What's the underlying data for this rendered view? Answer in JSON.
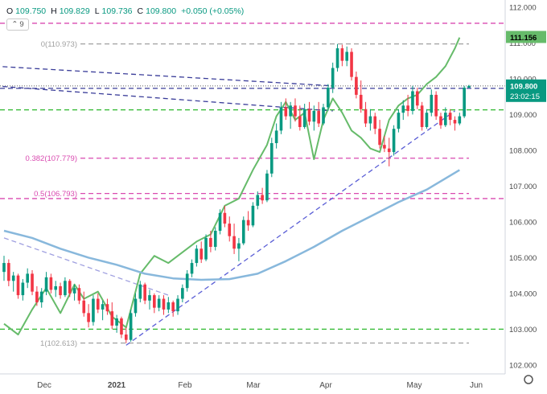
{
  "legend": {
    "open_label": "O",
    "open": "109.750",
    "high_label": "H",
    "high": "109.829",
    "low_label": "L",
    "low": "109.736",
    "close_label": "C",
    "close": "109.800",
    "change": "+0.050 (+0.05%)",
    "indicator_toggle_icon": "chevron-up-icon",
    "indicator_count": "9"
  },
  "price_tag": {
    "price": "109.800",
    "countdown": "23:02:15",
    "color": "#089981"
  },
  "ma_tag": {
    "price": "111.156",
    "color": "#66bb6a"
  },
  "colors": {
    "up": "#089981",
    "down": "#f23645",
    "green_line": "#66bb6a",
    "blue_ma": "#88b8dc",
    "trend_navy": "#3a3d99",
    "trend_blue": "#5b5fd6",
    "green_dash": "#2db82d",
    "magenta_dash": "#d94ab0",
    "fib_grey": "#a0a0a0"
  },
  "chart_data": {
    "type": "candlestick",
    "y_axis": {
      "range": [
        101.75,
        112.2
      ],
      "ticks": [
        "112.000",
        "111.000",
        "110.000",
        "109.000",
        "108.000",
        "107.000",
        "106.000",
        "105.000",
        "104.000",
        "103.000",
        "102.000"
      ]
    },
    "x_axis": {
      "labels": [
        "Dec",
        "2021",
        "Feb",
        "Mar",
        "Apr",
        "May",
        "Jun"
      ]
    },
    "candles": [
      [
        104.6,
        105.05,
        104.35,
        104.85
      ],
      [
        104.85,
        104.95,
        104.2,
        104.35
      ],
      [
        104.35,
        104.6,
        104.05,
        104.5
      ],
      [
        104.5,
        104.55,
        103.85,
        103.95
      ],
      [
        103.95,
        104.4,
        103.8,
        104.3
      ],
      [
        104.3,
        104.7,
        104.15,
        104.55
      ],
      [
        104.55,
        104.65,
        103.95,
        104.05
      ],
      [
        104.05,
        104.2,
        103.65,
        103.75
      ],
      [
        103.75,
        104.15,
        103.6,
        104.05
      ],
      [
        104.05,
        104.6,
        103.95,
        104.45
      ],
      [
        104.45,
        104.55,
        104.0,
        104.1
      ],
      [
        104.1,
        104.35,
        103.9,
        104.2
      ],
      [
        104.2,
        104.3,
        103.85,
        103.95
      ],
      [
        103.95,
        104.45,
        103.9,
        104.35
      ],
      [
        104.35,
        104.4,
        103.9,
        104.0
      ],
      [
        104.0,
        104.25,
        103.8,
        104.15
      ],
      [
        104.15,
        104.25,
        103.7,
        103.8
      ],
      [
        103.8,
        104.05,
        103.35,
        103.45
      ],
      [
        103.45,
        103.7,
        103.05,
        103.2
      ],
      [
        103.2,
        103.95,
        103.1,
        103.85
      ],
      [
        103.85,
        104.0,
        103.45,
        103.55
      ],
      [
        103.55,
        103.8,
        103.25,
        103.7
      ],
      [
        103.7,
        103.85,
        103.4,
        103.5
      ],
      [
        103.5,
        103.75,
        103.0,
        103.1
      ],
      [
        103.1,
        103.4,
        102.9,
        103.3
      ],
      [
        103.3,
        103.35,
        102.75,
        102.85
      ],
      [
        102.85,
        103.05,
        102.61,
        102.7
      ],
      [
        102.7,
        103.55,
        102.65,
        103.45
      ],
      [
        103.45,
        104.0,
        103.35,
        103.85
      ],
      [
        103.85,
        104.35,
        103.75,
        104.25
      ],
      [
        104.25,
        104.3,
        103.7,
        103.8
      ],
      [
        103.8,
        104.1,
        103.55,
        103.95
      ],
      [
        103.95,
        104.0,
        103.45,
        103.6
      ],
      [
        103.6,
        103.95,
        103.5,
        103.85
      ],
      [
        103.85,
        103.95,
        103.4,
        103.55
      ],
      [
        103.55,
        103.9,
        103.45,
        103.75
      ],
      [
        103.75,
        103.8,
        103.35,
        103.5
      ],
      [
        103.5,
        103.95,
        103.4,
        103.85
      ],
      [
        103.85,
        104.25,
        103.75,
        104.15
      ],
      [
        104.15,
        104.65,
        104.05,
        104.55
      ],
      [
        104.55,
        104.95,
        104.45,
        104.85
      ],
      [
        104.85,
        105.35,
        104.75,
        105.25
      ],
      [
        105.25,
        105.45,
        104.85,
        104.95
      ],
      [
        104.95,
        105.65,
        104.9,
        105.55
      ],
      [
        105.55,
        105.75,
        105.15,
        105.3
      ],
      [
        105.3,
        105.85,
        105.2,
        105.75
      ],
      [
        105.75,
        106.35,
        105.65,
        106.25
      ],
      [
        106.25,
        106.45,
        105.85,
        105.95
      ],
      [
        105.95,
        106.15,
        105.45,
        105.6
      ],
      [
        105.6,
        105.95,
        105.1,
        105.25
      ],
      [
        105.25,
        105.55,
        104.9,
        105.4
      ],
      [
        105.4,
        106.15,
        105.35,
        106.05
      ],
      [
        106.05,
        106.3,
        105.75,
        105.9
      ],
      [
        105.9,
        106.55,
        105.85,
        106.45
      ],
      [
        106.45,
        106.85,
        106.35,
        106.75
      ],
      [
        106.75,
        106.95,
        106.5,
        106.6
      ],
      [
        106.6,
        107.45,
        106.55,
        107.35
      ],
      [
        107.35,
        108.35,
        107.25,
        108.2
      ],
      [
        108.2,
        108.75,
        108.05,
        108.55
      ],
      [
        108.55,
        109.35,
        108.45,
        109.2
      ],
      [
        109.2,
        109.45,
        108.85,
        108.95
      ],
      [
        108.95,
        109.35,
        108.6,
        109.25
      ],
      [
        109.25,
        109.45,
        108.8,
        108.95
      ],
      [
        108.95,
        109.25,
        108.55,
        108.65
      ],
      [
        108.65,
        109.3,
        108.6,
        109.15
      ],
      [
        109.15,
        109.35,
        108.7,
        108.8
      ],
      [
        108.8,
        109.25,
        108.55,
        109.1
      ],
      [
        109.1,
        109.35,
        108.65,
        108.75
      ],
      [
        108.75,
        109.3,
        108.7,
        109.2
      ],
      [
        109.2,
        109.85,
        109.1,
        109.75
      ],
      [
        109.75,
        110.45,
        109.6,
        110.3
      ],
      [
        110.3,
        110.97,
        110.2,
        110.85
      ],
      [
        110.85,
        110.95,
        110.35,
        110.5
      ],
      [
        110.5,
        110.9,
        110.35,
        110.75
      ],
      [
        110.75,
        110.85,
        109.95,
        110.05
      ],
      [
        110.05,
        110.2,
        109.45,
        109.55
      ],
      [
        109.55,
        109.95,
        109.05,
        109.15
      ],
      [
        109.15,
        109.35,
        108.65,
        108.75
      ],
      [
        108.75,
        109.15,
        108.55,
        108.95
      ],
      [
        108.95,
        109.05,
        108.45,
        108.6
      ],
      [
        108.6,
        108.85,
        108.05,
        108.15
      ],
      [
        108.15,
        108.4,
        107.95,
        108.05
      ],
      [
        108.05,
        108.35,
        107.55,
        107.95
      ],
      [
        107.95,
        108.7,
        107.85,
        108.6
      ],
      [
        108.6,
        109.15,
        108.5,
        109.05
      ],
      [
        109.05,
        109.4,
        108.85,
        109.25
      ],
      [
        109.25,
        109.55,
        108.95,
        109.1
      ],
      [
        109.1,
        109.8,
        109.0,
        109.65
      ],
      [
        109.65,
        109.75,
        109.15,
        109.25
      ],
      [
        109.25,
        109.35,
        108.55,
        108.65
      ],
      [
        108.65,
        109.15,
        108.6,
        109.05
      ],
      [
        109.05,
        109.7,
        108.95,
        109.55
      ],
      [
        109.55,
        109.65,
        108.85,
        108.95
      ],
      [
        108.95,
        109.05,
        108.6,
        108.7
      ],
      [
        108.7,
        109.2,
        108.65,
        109.05
      ],
      [
        109.05,
        109.15,
        108.7,
        108.85
      ],
      [
        108.85,
        108.95,
        108.55,
        108.75
      ],
      [
        108.75,
        109.05,
        108.7,
        108.95
      ],
      [
        108.95,
        109.8,
        108.9,
        109.75
      ],
      [
        109.75,
        109.83,
        109.74,
        109.8
      ]
    ],
    "series": [
      {
        "name": "",
        "type": "line",
        "points": [
          [
            0,
            103.15
          ],
          [
            3,
            102.85
          ],
          [
            6,
            103.55
          ],
          [
            9,
            104.15
          ],
          [
            12,
            103.45
          ],
          [
            15,
            104.25
          ],
          [
            17,
            103.85
          ],
          [
            20,
            104.05
          ],
          [
            23,
            103.35
          ],
          [
            26,
            103.05
          ],
          [
            29,
            104.55
          ],
          [
            32,
            105.05
          ],
          [
            35,
            104.85
          ],
          [
            38,
            105.15
          ],
          [
            41,
            105.45
          ],
          [
            44,
            105.65
          ],
          [
            47,
            106.45
          ],
          [
            50,
            106.65
          ],
          [
            53,
            107.45
          ],
          [
            56,
            108.15
          ],
          [
            58,
            108.95
          ],
          [
            60,
            109.35
          ],
          [
            62,
            108.85
          ],
          [
            64,
            109.05
          ],
          [
            66,
            107.75
          ],
          [
            68,
            108.85
          ],
          [
            70,
            109.45
          ],
          [
            72,
            109.05
          ],
          [
            74,
            108.55
          ],
          [
            76,
            108.35
          ],
          [
            78,
            108.05
          ],
          [
            80,
            107.95
          ],
          [
            82,
            108.85
          ],
          [
            84,
            109.25
          ],
          [
            86,
            109.45
          ],
          [
            88,
            109.55
          ],
          [
            90,
            109.85
          ],
          [
            92,
            110.05
          ],
          [
            94,
            110.35
          ],
          [
            96,
            110.85
          ],
          [
            97,
            111.15
          ]
        ]
      },
      {
        "name": "",
        "type": "line",
        "points": [
          [
            0,
            105.75
          ],
          [
            6,
            105.55
          ],
          [
            12,
            105.25
          ],
          [
            18,
            105.0
          ],
          [
            24,
            104.8
          ],
          [
            30,
            104.55
          ],
          [
            36,
            104.42
          ],
          [
            42,
            104.38
          ],
          [
            48,
            104.4
          ],
          [
            54,
            104.55
          ],
          [
            60,
            104.9
          ],
          [
            66,
            105.3
          ],
          [
            72,
            105.75
          ],
          [
            78,
            106.15
          ],
          [
            84,
            106.55
          ],
          [
            90,
            106.9
          ],
          [
            97,
            107.45
          ]
        ]
      }
    ],
    "horizontal_lines": [
      {
        "price": 111.55,
        "style": "dashed",
        "color": "#d94ab0"
      },
      {
        "price": 110.973,
        "style": "dashed",
        "color": "#a0a0a0",
        "label": "0(110.973)"
      },
      {
        "price": 109.13,
        "style": "dashed",
        "color": "#2db82d"
      },
      {
        "price": 107.779,
        "style": "dashed",
        "color": "#d94ab0",
        "label": "0.382(107.779)"
      },
      {
        "price": 106.793,
        "style": "dashed",
        "color": "#d94ab0",
        "label": "0.5(106.793)"
      },
      {
        "price": 106.65,
        "style": "dashed",
        "color": "#d94ab0"
      },
      {
        "price": 103.0,
        "style": "dashed",
        "color": "#2db82d"
      },
      {
        "price": 102.613,
        "style": "dashed",
        "color": "#a0a0a0",
        "label": "1(102.613)"
      },
      {
        "price": 109.73,
        "style": "dashed",
        "color": "#3a3d99"
      },
      {
        "price": 109.8,
        "style": "dotted",
        "color": "#888888"
      }
    ],
    "trendlines": [
      {
        "from": [
          -2,
          110.35
        ],
        "to": [
          70,
          109.8
        ],
        "color": "#3a3d99"
      },
      {
        "from": [
          -2,
          109.8
        ],
        "to": [
          70,
          109.1
        ],
        "color": "#3a3d99"
      },
      {
        "from": [
          26,
          102.55
        ],
        "to": [
          96,
          109.1
        ],
        "color": "#5b5fd6"
      },
      {
        "from": [
          0,
          105.55
        ],
        "to": [
          35,
          103.95
        ],
        "color": "#a0a0e0"
      }
    ]
  }
}
